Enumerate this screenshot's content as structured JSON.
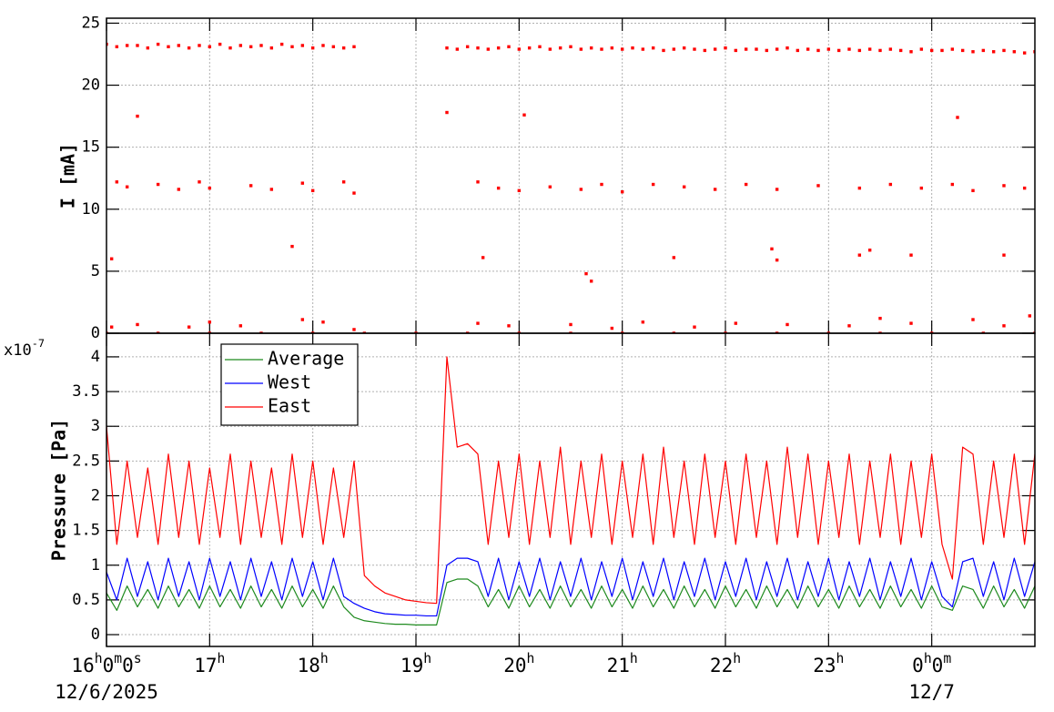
{
  "chart_data": [
    {
      "type": "scatter",
      "ylabel": "I [mA]",
      "color": "#ff0000",
      "grid": true,
      "xlim": [
        16,
        25
      ],
      "ylim": [
        0,
        25.4
      ],
      "yticks": [
        0,
        5,
        10,
        15,
        20,
        25
      ],
      "xticks": [
        16,
        17,
        18,
        19,
        20,
        21,
        22,
        23,
        24
      ],
      "x": [
        16,
        16.1,
        16.2,
        16.3,
        16.4,
        16.5,
        16.6,
        16.7,
        16.8,
        16.9,
        17,
        17.1,
        17.2,
        17.3,
        17.4,
        17.5,
        17.6,
        17.7,
        17.8,
        17.9,
        18,
        18.1,
        18.2,
        18.3,
        18.4,
        19.3,
        19.4,
        19.5,
        19.6,
        19.7,
        19.8,
        19.9,
        20,
        20.1,
        20.2,
        20.3,
        20.4,
        20.5,
        20.6,
        20.7,
        20.8,
        20.9,
        21,
        21.1,
        21.2,
        21.3,
        21.4,
        21.5,
        21.6,
        21.7,
        21.8,
        21.9,
        22,
        22.1,
        22.2,
        22.3,
        22.4,
        22.5,
        22.6,
        22.7,
        22.8,
        22.9,
        23,
        23.1,
        23.2,
        23.3,
        23.4,
        23.5,
        23.6,
        23.7,
        23.8,
        23.9,
        24,
        24.1,
        24.2,
        24.3,
        24.4,
        24.5,
        24.6,
        24.7,
        24.8,
        24.9,
        25,
        16.05,
        16.3,
        16.1,
        16.2,
        16.5,
        16.7,
        16.9,
        17,
        17.4,
        17.6,
        17.9,
        18,
        18.3,
        18.4,
        19.6,
        19.8,
        20,
        20.3,
        20.6,
        20.8,
        21,
        21.3,
        21.6,
        21.9,
        22.2,
        22.5,
        22.9,
        23.3,
        23.6,
        23.9,
        24.2,
        24.4,
        24.7,
        24.9,
        17.8,
        19.65,
        20.65,
        20.7,
        21.5,
        22.45,
        22.5,
        23.3,
        23.4,
        23.8,
        24.7,
        19.3,
        20.05,
        24.25,
        16.05,
        16.3,
        16.8,
        17,
        17.3,
        17.9,
        18.1,
        18.4,
        19.6,
        19.9,
        20.5,
        20.9,
        21.2,
        21.7,
        22.1,
        22.6,
        23.2,
        23.5,
        23.8,
        24.4,
        24.7,
        24.95,
        16,
        16.5,
        17,
        17.5,
        18,
        18.5,
        19,
        19.5,
        20,
        20.5,
        21,
        21.5,
        22,
        22.5,
        23,
        23.5,
        24,
        24.5,
        25
      ],
      "values": [
        23.3,
        23.1,
        23.2,
        23.2,
        23.0,
        23.3,
        23.1,
        23.2,
        23.0,
        23.2,
        23.1,
        23.3,
        23.0,
        23.2,
        23.1,
        23.2,
        23.0,
        23.3,
        23.1,
        23.2,
        23.0,
        23.2,
        23.1,
        23.0,
        23.1,
        23.0,
        22.9,
        23.1,
        23.0,
        22.9,
        23.0,
        23.1,
        22.9,
        23.0,
        23.1,
        22.9,
        23.0,
        23.1,
        22.9,
        23.0,
        22.9,
        23.0,
        22.9,
        23.0,
        22.9,
        23.0,
        22.8,
        22.9,
        23.0,
        22.9,
        22.8,
        22.9,
        23.0,
        22.8,
        22.9,
        22.9,
        22.8,
        22.9,
        23.0,
        22.8,
        22.9,
        22.8,
        22.9,
        22.8,
        22.9,
        22.8,
        22.9,
        22.8,
        22.9,
        22.8,
        22.7,
        22.9,
        22.8,
        22.8,
        22.9,
        22.8,
        22.7,
        22.8,
        22.7,
        22.8,
        22.7,
        22.6,
        22.7,
        6,
        17.5,
        12.2,
        11.8,
        12,
        11.6,
        12.2,
        11.7,
        11.9,
        11.6,
        12.1,
        11.5,
        12.2,
        11.3,
        12.2,
        11.7,
        11.5,
        11.8,
        11.6,
        12.0,
        11.4,
        12.0,
        11.8,
        11.6,
        12.0,
        11.6,
        11.9,
        11.7,
        12.0,
        11.7,
        12.0,
        11.5,
        11.9,
        11.7,
        7,
        6.1,
        4.8,
        4.2,
        6.1,
        6.8,
        5.9,
        6.3,
        6.7,
        6.3,
        6.3,
        17.8,
        17.6,
        17.4,
        0.5,
        0.7,
        0.5,
        0.9,
        0.6,
        1.1,
        0.9,
        0.3,
        0.8,
        0.6,
        0.7,
        0.4,
        0.9,
        0.5,
        0.8,
        0.7,
        0.6,
        1.2,
        0.8,
        1.1,
        0.6,
        1.4,
        0,
        0,
        0,
        0,
        0,
        0,
        0,
        0,
        0,
        0,
        0,
        0,
        0,
        0,
        0,
        0,
        0,
        0,
        0
      ]
    },
    {
      "type": "line",
      "ylabel": "Pressure [Pa]",
      "scale_label": "x10-7",
      "grid": true,
      "legend": "upper left",
      "xlim": [
        16,
        25
      ],
      "ylim": [
        -0.17,
        4.34
      ],
      "yticks": [
        0,
        0.5,
        1,
        1.5,
        2,
        2.5,
        3,
        3.5,
        4
      ],
      "xticks": [
        {
          "value": 16,
          "label": "16h0m0s"
        },
        {
          "value": 17,
          "label": "17h"
        },
        {
          "value": 18,
          "label": "18h"
        },
        {
          "value": 19,
          "label": "19h"
        },
        {
          "value": 20,
          "label": "20h"
        },
        {
          "value": 21,
          "label": "21h"
        },
        {
          "value": 22,
          "label": "22h"
        },
        {
          "value": 23,
          "label": "23h"
        },
        {
          "value": 24,
          "label": "0h0m"
        }
      ],
      "date_labels": [
        {
          "value": 16,
          "label": "12/6/2025"
        },
        {
          "value": 24,
          "label": "12/7"
        }
      ],
      "x": [
        16,
        16.1,
        16.2,
        16.3,
        16.4,
        16.5,
        16.6,
        16.7,
        16.8,
        16.9,
        17,
        17.1,
        17.2,
        17.3,
        17.4,
        17.5,
        17.6,
        17.7,
        17.8,
        17.9,
        18,
        18.1,
        18.2,
        18.3,
        18.4,
        18.5,
        18.6,
        18.7,
        18.8,
        18.9,
        19,
        19.1,
        19.2,
        19.3,
        19.4,
        19.5,
        19.6,
        19.7,
        19.8,
        19.9,
        20,
        20.1,
        20.2,
        20.3,
        20.4,
        20.5,
        20.6,
        20.7,
        20.8,
        20.9,
        21,
        21.1,
        21.2,
        21.3,
        21.4,
        21.5,
        21.6,
        21.7,
        21.8,
        21.9,
        22,
        22.1,
        22.2,
        22.3,
        22.4,
        22.5,
        22.6,
        22.7,
        22.8,
        22.9,
        23,
        23.1,
        23.2,
        23.3,
        23.4,
        23.5,
        23.6,
        23.7,
        23.8,
        23.9,
        24,
        24.1,
        24.2,
        24.3,
        24.4,
        24.5,
        24.6,
        24.7,
        24.8,
        24.9,
        25
      ],
      "series": [
        {
          "name": "Average",
          "color": "#1e8a1e",
          "values": [
            0.6,
            0.35,
            0.7,
            0.4,
            0.65,
            0.38,
            0.7,
            0.4,
            0.65,
            0.38,
            0.7,
            0.4,
            0.65,
            0.38,
            0.7,
            0.4,
            0.65,
            0.38,
            0.7,
            0.4,
            0.65,
            0.38,
            0.7,
            0.4,
            0.25,
            0.2,
            0.18,
            0.16,
            0.15,
            0.15,
            0.14,
            0.14,
            0.14,
            0.75,
            0.8,
            0.8,
            0.7,
            0.4,
            0.65,
            0.38,
            0.7,
            0.4,
            0.65,
            0.38,
            0.7,
            0.4,
            0.65,
            0.38,
            0.7,
            0.4,
            0.65,
            0.38,
            0.7,
            0.4,
            0.65,
            0.38,
            0.7,
            0.4,
            0.65,
            0.38,
            0.7,
            0.4,
            0.65,
            0.38,
            0.7,
            0.4,
            0.65,
            0.38,
            0.7,
            0.4,
            0.65,
            0.38,
            0.7,
            0.4,
            0.65,
            0.38,
            0.7,
            0.4,
            0.65,
            0.38,
            0.7,
            0.4,
            0.35,
            0.7,
            0.65,
            0.38,
            0.7,
            0.4,
            0.65,
            0.38,
            0.7
          ]
        },
        {
          "name": "West",
          "color": "#0000ff",
          "values": [
            0.9,
            0.5,
            1.1,
            0.55,
            1.05,
            0.5,
            1.1,
            0.55,
            1.05,
            0.5,
            1.1,
            0.55,
            1.05,
            0.5,
            1.1,
            0.55,
            1.05,
            0.5,
            1.1,
            0.55,
            1.05,
            0.5,
            1.1,
            0.55,
            0.45,
            0.38,
            0.33,
            0.3,
            0.29,
            0.28,
            0.28,
            0.27,
            0.27,
            1.0,
            1.1,
            1.1,
            1.05,
            0.55,
            1.1,
            0.5,
            1.05,
            0.55,
            1.1,
            0.5,
            1.05,
            0.55,
            1.1,
            0.5,
            1.05,
            0.55,
            1.1,
            0.5,
            1.05,
            0.55,
            1.1,
            0.5,
            1.05,
            0.55,
            1.1,
            0.5,
            1.05,
            0.55,
            1.1,
            0.5,
            1.05,
            0.55,
            1.1,
            0.5,
            1.05,
            0.55,
            1.1,
            0.5,
            1.05,
            0.55,
            1.1,
            0.5,
            1.05,
            0.55,
            1.1,
            0.5,
            1.05,
            0.55,
            0.4,
            1.05,
            1.1,
            0.55,
            1.05,
            0.5,
            1.1,
            0.55,
            1.05
          ]
        },
        {
          "name": "East",
          "color": "#ff0000",
          "values": [
            3.0,
            1.3,
            2.5,
            1.4,
            2.4,
            1.3,
            2.6,
            1.4,
            2.5,
            1.3,
            2.4,
            1.4,
            2.6,
            1.3,
            2.5,
            1.4,
            2.4,
            1.3,
            2.6,
            1.4,
            2.5,
            1.3,
            2.4,
            1.4,
            2.5,
            0.85,
            0.7,
            0.6,
            0.55,
            0.5,
            0.48,
            0.46,
            0.45,
            4.0,
            2.7,
            2.75,
            2.6,
            1.3,
            2.5,
            1.4,
            2.6,
            1.3,
            2.5,
            1.4,
            2.7,
            1.3,
            2.5,
            1.4,
            2.6,
            1.3,
            2.5,
            1.4,
            2.6,
            1.3,
            2.7,
            1.4,
            2.5,
            1.3,
            2.6,
            1.4,
            2.5,
            1.3,
            2.6,
            1.4,
            2.5,
            1.3,
            2.7,
            1.4,
            2.6,
            1.3,
            2.5,
            1.4,
            2.6,
            1.3,
            2.5,
            1.4,
            2.6,
            1.3,
            2.5,
            1.4,
            2.6,
            1.3,
            0.8,
            2.7,
            2.6,
            1.3,
            2.5,
            1.4,
            2.6,
            1.3,
            2.6
          ]
        }
      ]
    }
  ]
}
